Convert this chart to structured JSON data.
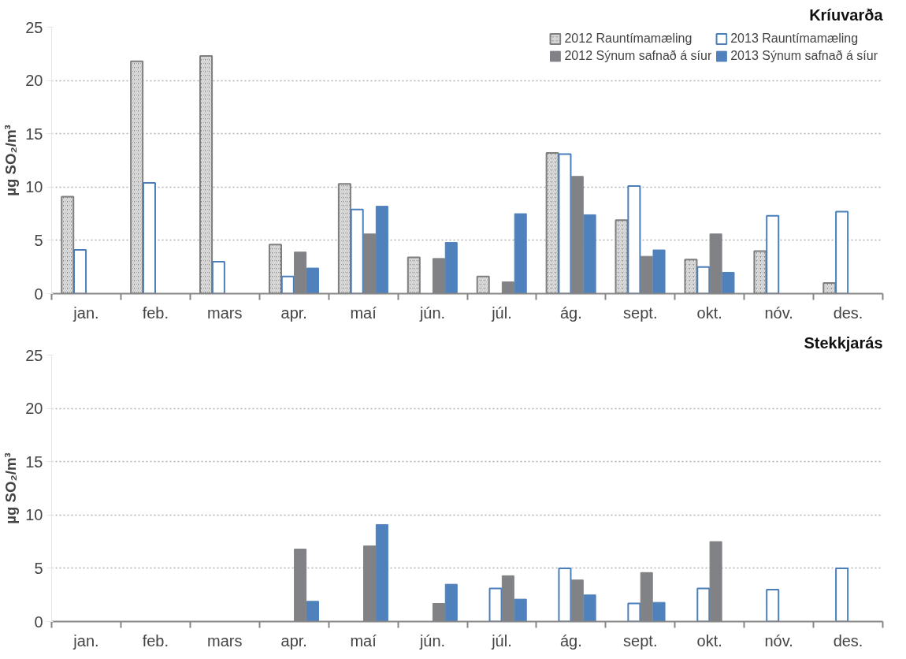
{
  "chart_data": [
    {
      "type": "bar",
      "title": "Kríuvarða",
      "ylabel": "µg SO₂/m³",
      "categories": [
        "jan.",
        "feb.",
        "mars",
        "apr.",
        "maí",
        "jún.",
        "júl.",
        "ág.",
        "sept.",
        "okt.",
        "nóv.",
        "des."
      ],
      "ylim": [
        0,
        25
      ],
      "yticks": [
        0,
        5,
        10,
        15,
        20,
        25
      ],
      "grid": "y",
      "legend": "top right",
      "series": [
        {
          "name": "2012 Rauntímamæling",
          "color": "#7f7f7f",
          "values": [
            9.1,
            21.8,
            22.3,
            4.6,
            10.3,
            3.4,
            1.6,
            13.2,
            6.9,
            3.2,
            4.0,
            1.0
          ]
        },
        {
          "name": "2013 Rauntímamæling",
          "color": "#4a7ebb",
          "values": [
            4.1,
            10.4,
            3.0,
            1.6,
            7.9,
            null,
            null,
            13.1,
            10.1,
            2.5,
            7.3,
            7.7
          ]
        },
        {
          "name": "2012 Sýnum safnað á síur",
          "color": "#808285",
          "values": [
            null,
            null,
            null,
            3.9,
            5.6,
            3.3,
            1.1,
            11.0,
            3.5,
            5.6,
            null,
            null
          ]
        },
        {
          "name": "2013 Sýnum safnað á síur",
          "color": "#4f81bd",
          "values": [
            null,
            null,
            null,
            2.4,
            8.2,
            4.8,
            7.5,
            7.4,
            4.1,
            2.0,
            null,
            null
          ]
        }
      ]
    },
    {
      "type": "bar",
      "title": "Stekkjarás",
      "ylabel": "µg SO₂/m³",
      "categories": [
        "jan.",
        "feb.",
        "mars",
        "apr.",
        "maí",
        "jún.",
        "júl.",
        "ág.",
        "sept.",
        "okt.",
        "nóv.",
        "des."
      ],
      "ylim": [
        0,
        25
      ],
      "yticks": [
        0,
        5,
        10,
        15,
        20,
        25
      ],
      "grid": "y",
      "series": [
        {
          "color": "#7f7f7f",
          "values": [
            null,
            null,
            null,
            null,
            null,
            null,
            null,
            null,
            null,
            null,
            null,
            null
          ]
        },
        {
          "color": "#4a7ebb",
          "values": [
            null,
            null,
            null,
            null,
            null,
            null,
            3.1,
            5.0,
            1.7,
            3.1,
            3.0,
            5.0
          ]
        },
        {
          "color": "#808285",
          "values": [
            null,
            null,
            null,
            6.8,
            7.1,
            1.7,
            4.3,
            3.9,
            4.6,
            7.5,
            null,
            null
          ]
        },
        {
          "color": "#4f81bd",
          "values": [
            null,
            null,
            null,
            1.9,
            9.1,
            3.5,
            2.1,
            2.5,
            1.8,
            null,
            null,
            null
          ]
        }
      ]
    }
  ]
}
